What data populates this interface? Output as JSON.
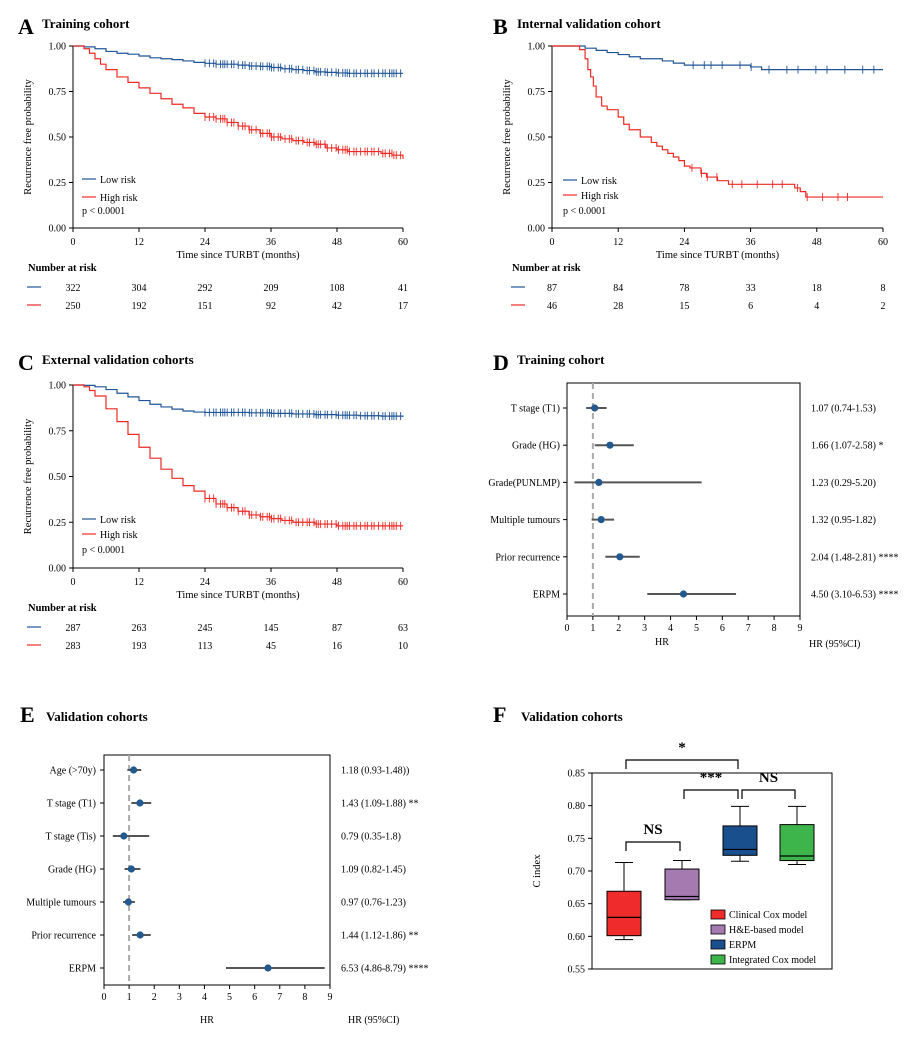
{
  "colors": {
    "low": "#1f5596",
    "high": "#ee2a24",
    "point": "#22598f",
    "ci": "#555555",
    "ref": "#aaaaaa"
  },
  "panel_labels": [
    "A",
    "B",
    "C",
    "D",
    "E",
    "F"
  ],
  "chart_data": [
    {
      "id": "A",
      "type": "line",
      "title": "Training cohort",
      "xlabel": "Time since TURBT (months)",
      "ylabel": "Recurrence free probability",
      "xlim": [
        0,
        60
      ],
      "ylim": [
        0,
        1
      ],
      "xticks": [
        "0",
        "12",
        "24",
        "36",
        "48",
        "60"
      ],
      "yticks": [
        "0.00",
        "0.25",
        "0.50",
        "0.75",
        "1.00"
      ],
      "legend": [
        "Low risk",
        "High risk"
      ],
      "pvalue": "p < 0.0001",
      "series": [
        {
          "name": "Low risk",
          "x": [
            0,
            2,
            4,
            6,
            8,
            10,
            12,
            14,
            16,
            18,
            20,
            22,
            24,
            26,
            28,
            30,
            32,
            34,
            36,
            38,
            40,
            42,
            44,
            46,
            48,
            50,
            52,
            54,
            56,
            58,
            60
          ],
          "y": [
            1.0,
            0.995,
            0.985,
            0.97,
            0.96,
            0.955,
            0.945,
            0.935,
            0.93,
            0.925,
            0.918,
            0.91,
            0.905,
            0.9,
            0.9,
            0.895,
            0.89,
            0.888,
            0.882,
            0.875,
            0.87,
            0.865,
            0.858,
            0.855,
            0.852,
            0.85,
            0.85,
            0.85,
            0.85,
            0.85,
            0.85
          ],
          "censor_range": [
            24,
            60
          ]
        },
        {
          "name": "High risk",
          "x": [
            0,
            2,
            3,
            4,
            5,
            6,
            8,
            10,
            12,
            14,
            16,
            18,
            20,
            22,
            24,
            26,
            28,
            30,
            32,
            34,
            36,
            38,
            40,
            42,
            44,
            46,
            48,
            50,
            52,
            54,
            56,
            58,
            60
          ],
          "y": [
            1.0,
            0.985,
            0.96,
            0.93,
            0.9,
            0.87,
            0.83,
            0.8,
            0.77,
            0.74,
            0.71,
            0.68,
            0.66,
            0.63,
            0.61,
            0.6,
            0.58,
            0.56,
            0.54,
            0.52,
            0.5,
            0.49,
            0.48,
            0.47,
            0.46,
            0.44,
            0.43,
            0.42,
            0.42,
            0.42,
            0.41,
            0.4,
            0.38
          ],
          "censor_range": [
            24,
            60
          ]
        }
      ],
      "risk_table": {
        "header": "Number at risk",
        "rows": [
          {
            "name": "Low risk",
            "values": [
              "322",
              "304",
              "292",
              "209",
              "108",
              "41"
            ]
          },
          {
            "name": "High risk",
            "values": [
              "250",
              "192",
              "151",
              "92",
              "42",
              "17"
            ]
          }
        ]
      }
    },
    {
      "id": "B",
      "type": "line",
      "title": "Internal validation cohort",
      "xlabel": "Time since TURBT (months)",
      "ylabel": "Recurrence free probability",
      "xlim": [
        0,
        60
      ],
      "ylim": [
        0,
        1
      ],
      "xticks": [
        "0",
        "12",
        "24",
        "36",
        "48",
        "60"
      ],
      "yticks": [
        "0.00",
        "0.25",
        "0.50",
        "0.75",
        "1.00"
      ],
      "legend": [
        "Low risk",
        "High risk"
      ],
      "pvalue": "p < 0.0001",
      "series": [
        {
          "name": "Low risk",
          "x": [
            0,
            5,
            6,
            8,
            10,
            12,
            14,
            16,
            20,
            22,
            24,
            26,
            30,
            34,
            36,
            38,
            40,
            60
          ],
          "y": [
            1.0,
            1.0,
            0.988,
            0.976,
            0.964,
            0.953,
            0.941,
            0.93,
            0.918,
            0.906,
            0.895,
            0.895,
            0.895,
            0.895,
            0.885,
            0.87,
            0.87,
            0.87
          ],
          "censor_range": [
            24,
            60
          ]
        },
        {
          "name": "High risk",
          "x": [
            0,
            5,
            6,
            6.5,
            7,
            7.5,
            8,
            9,
            10,
            12,
            13,
            14,
            16,
            18,
            19,
            20,
            21,
            22,
            23,
            24,
            25,
            26,
            27,
            28,
            30,
            32,
            34,
            36,
            38,
            40,
            42,
            44,
            45,
            46,
            50,
            55,
            60
          ],
          "y": [
            1.0,
            0.98,
            0.93,
            0.87,
            0.83,
            0.78,
            0.72,
            0.67,
            0.65,
            0.61,
            0.57,
            0.54,
            0.5,
            0.47,
            0.45,
            0.43,
            0.41,
            0.39,
            0.37,
            0.34,
            0.33,
            0.33,
            0.3,
            0.28,
            0.26,
            0.24,
            0.24,
            0.24,
            0.24,
            0.24,
            0.24,
            0.22,
            0.2,
            0.17,
            0.17,
            0.17,
            0.17
          ],
          "censor_range": [
            24,
            55
          ]
        }
      ],
      "risk_table": {
        "header": "Number at risk",
        "rows": [
          {
            "name": "Low risk",
            "values": [
              "87",
              "84",
              "78",
              "33",
              "18",
              "8"
            ]
          },
          {
            "name": "High risk",
            "values": [
              "46",
              "28",
              "15",
              "6",
              "4",
              "2"
            ]
          }
        ]
      }
    },
    {
      "id": "C",
      "type": "line",
      "title": "External validation cohorts",
      "xlabel": "Time since TURBT (months)",
      "ylabel": "Recurrence free probability",
      "xlim": [
        0,
        60
      ],
      "ylim": [
        0,
        1
      ],
      "xticks": [
        "0",
        "12",
        "24",
        "36",
        "48",
        "60"
      ],
      "yticks": [
        "0.00",
        "0.25",
        "0.50",
        "0.75",
        "1.00"
      ],
      "legend": [
        "Low risk",
        "High risk"
      ],
      "pvalue": "p < 0.0001",
      "series": [
        {
          "name": "Low risk",
          "x": [
            0,
            2,
            4,
            6,
            8,
            10,
            12,
            14,
            16,
            18,
            20,
            22,
            24,
            28,
            32,
            36,
            40,
            44,
            48,
            52,
            56,
            60
          ],
          "y": [
            1.0,
            0.998,
            0.99,
            0.975,
            0.955,
            0.935,
            0.915,
            0.895,
            0.88,
            0.868,
            0.858,
            0.852,
            0.85,
            0.85,
            0.848,
            0.845,
            0.842,
            0.838,
            0.835,
            0.832,
            0.83,
            0.826
          ],
          "censor_range": [
            24,
            60
          ]
        },
        {
          "name": "High risk",
          "x": [
            0,
            2,
            3,
            4,
            6,
            8,
            10,
            12,
            14,
            16,
            18,
            20,
            22,
            24,
            26,
            28,
            30,
            32,
            34,
            36,
            38,
            40,
            44,
            48,
            52,
            56,
            60
          ],
          "y": [
            1.0,
            0.99,
            0.97,
            0.94,
            0.87,
            0.8,
            0.73,
            0.66,
            0.6,
            0.54,
            0.49,
            0.45,
            0.42,
            0.38,
            0.35,
            0.33,
            0.31,
            0.29,
            0.28,
            0.27,
            0.26,
            0.25,
            0.24,
            0.23,
            0.23,
            0.23,
            0.23
          ],
          "censor_range": [
            24,
            60
          ]
        }
      ],
      "risk_table": {
        "header": "Number at risk",
        "rows": [
          {
            "name": "Low risk",
            "values": [
              "287",
              "263",
              "245",
              "145",
              "87",
              "63"
            ]
          },
          {
            "name": "High risk",
            "values": [
              "283",
              "193",
              "113",
              "45",
              "16",
              "10"
            ]
          }
        ]
      }
    },
    {
      "id": "D",
      "type": "scatter",
      "subtype": "forest",
      "title": "Training cohort",
      "xlabel": "HR",
      "hr_header": "HR (95%CI)",
      "xlim": [
        0,
        9
      ],
      "ref": 1,
      "xticks": [
        "0",
        "1",
        "2",
        "3",
        "4",
        "5",
        "6",
        "7",
        "8",
        "9"
      ],
      "rows": [
        {
          "label": "T stage (T1)",
          "hr": 1.07,
          "lo": 0.74,
          "hi": 1.53,
          "text": "1.07 (0.74-1.53)"
        },
        {
          "label": "Grade (HG)",
          "hr": 1.66,
          "lo": 1.07,
          "hi": 2.58,
          "text": "1.66 (1.07-2.58) *"
        },
        {
          "label": "Grade(PUNLMP)",
          "hr": 1.23,
          "lo": 0.29,
          "hi": 5.2,
          "text": "1.23 (0.29-5.20)"
        },
        {
          "label": "Multiple tumours",
          "hr": 1.32,
          "lo": 0.95,
          "hi": 1.82,
          "text": "1.32 (0.95-1.82)"
        },
        {
          "label": "Prior recurrence",
          "hr": 2.04,
          "lo": 1.48,
          "hi": 2.81,
          "text": "2.04 (1.48-2.81) ****"
        },
        {
          "label": "ERPM",
          "hr": 4.5,
          "lo": 3.1,
          "hi": 6.53,
          "text": "4.50 (3.10-6.53) ****"
        }
      ]
    },
    {
      "id": "E",
      "type": "scatter",
      "subtype": "forest",
      "title": "Validation cohorts",
      "xlabel": "HR",
      "hr_header": "HR (95%CI)",
      "xlim": [
        0,
        9
      ],
      "ref": 1,
      "xticks": [
        "0",
        "1",
        "2",
        "3",
        "4",
        "5",
        "6",
        "7",
        "8",
        "9"
      ],
      "rows": [
        {
          "label": "Age (>70y)",
          "hr": 1.18,
          "lo": 0.93,
          "hi": 1.48,
          "text": "1.18 (0.93-1.48))"
        },
        {
          "label": "T stage (T1)",
          "hr": 1.43,
          "lo": 1.09,
          "hi": 1.88,
          "text": "1.43 (1.09-1.88) **"
        },
        {
          "label": "T stage (Tis)",
          "hr": 0.79,
          "lo": 0.35,
          "hi": 1.8,
          "text": "0.79 (0.35-1.8)"
        },
        {
          "label": "Grade (HG)",
          "hr": 1.09,
          "lo": 0.82,
          "hi": 1.45,
          "text": "1.09 (0.82-1.45)"
        },
        {
          "label": "Multiple tumours",
          "hr": 0.97,
          "lo": 0.76,
          "hi": 1.23,
          "text": "0.97 (0.76-1.23)"
        },
        {
          "label": "Prior recurrence",
          "hr": 1.44,
          "lo": 1.12,
          "hi": 1.86,
          "text": "1.44 (1.12-1.86) **"
        },
        {
          "label": "ERPM",
          "hr": 6.53,
          "lo": 4.86,
          "hi": 8.79,
          "text": "6.53 (4.86-8.79) ****"
        }
      ]
    },
    {
      "id": "F",
      "type": "bar",
      "subtype": "boxplot",
      "title": "Validation cohorts",
      "ylabel": "C index",
      "ylim": [
        0.55,
        0.85
      ],
      "yticks": [
        "0.55",
        "0.60",
        "0.65",
        "0.70",
        "0.75",
        "0.80",
        "0.85"
      ],
      "boxes": [
        {
          "name": "Clinical Cox model",
          "color": "#ef2b2b",
          "min": 0.595,
          "q1": 0.601,
          "median": 0.629,
          "q3": 0.669,
          "max": 0.713
        },
        {
          "name": "H&E-based model",
          "color": "#a47ab0",
          "min": 0.656,
          "q1": 0.656,
          "median": 0.661,
          "q3": 0.703,
          "max": 0.716
        },
        {
          "name": "ERPM",
          "color": "#1a4f8e",
          "min": 0.715,
          "q1": 0.724,
          "median": 0.733,
          "q3": 0.769,
          "max": 0.799
        },
        {
          "name": "Integrated Cox model",
          "color": "#3db54a",
          "min": 0.71,
          "q1": 0.716,
          "median": 0.723,
          "q3": 0.771,
          "max": 0.799
        }
      ],
      "comparisons": [
        {
          "from": 0,
          "to": 2,
          "label": "*"
        },
        {
          "from": 1,
          "to": 2,
          "label": "***"
        },
        {
          "from": 2,
          "to": 3,
          "label": "NS"
        },
        {
          "from": 0,
          "to": 1,
          "label": "NS"
        }
      ]
    }
  ]
}
